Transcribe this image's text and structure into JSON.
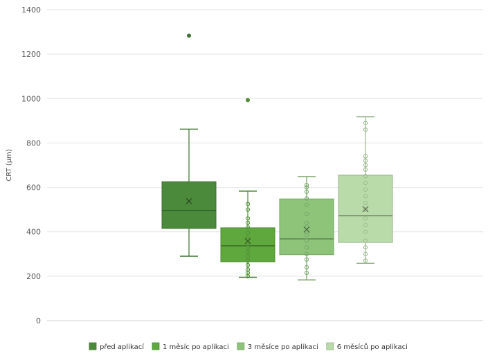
{
  "chart_data": {
    "type": "box",
    "title": "",
    "xlabel": "",
    "ylabel": "CRT (µm)",
    "ylim": [
      0,
      1400
    ],
    "yticks": [
      0,
      200,
      400,
      600,
      800,
      1000,
      1200,
      1400
    ],
    "grid": true,
    "legend_position": "bottom",
    "series": [
      {
        "name": "před aplikací",
        "color": "#4a8a3a",
        "min": 290,
        "q1": 415,
        "median": 495,
        "q3": 625,
        "max": 862,
        "mean": 538,
        "outliers": [
          1283
        ],
        "points": []
      },
      {
        "name": "1 měsíc po aplikaci",
        "color": "#5fa83e",
        "min": 195,
        "q1": 265,
        "median": 337,
        "q3": 418,
        "max": 583,
        "mean": 358,
        "outliers": [
          993
        ],
        "points": [
          200,
          215,
          230,
          250,
          270,
          290,
          310,
          330,
          350,
          370,
          395,
          420,
          440,
          460,
          500,
          525
        ]
      },
      {
        "name": "3 měsíce po aplikaci",
        "color": "#8dc47a",
        "min": 183,
        "q1": 297,
        "median": 368,
        "q3": 548,
        "max": 648,
        "mean": 410,
        "outliers": [],
        "points": [
          215,
          240,
          275,
          300,
          330,
          360,
          385,
          400,
          420,
          440,
          480,
          520,
          550,
          580,
          600,
          610
        ]
      },
      {
        "name": "6 měsíců po aplikaci",
        "color": "#b9dba9",
        "min": 258,
        "q1": 352,
        "median": 472,
        "q3": 655,
        "max": 918,
        "mean": 502,
        "outliers": [],
        "points": [
          270,
          300,
          330,
          360,
          400,
          430,
          460,
          500,
          530,
          560,
          590,
          620,
          650,
          680,
          700,
          720,
          740,
          860,
          890
        ]
      }
    ]
  }
}
